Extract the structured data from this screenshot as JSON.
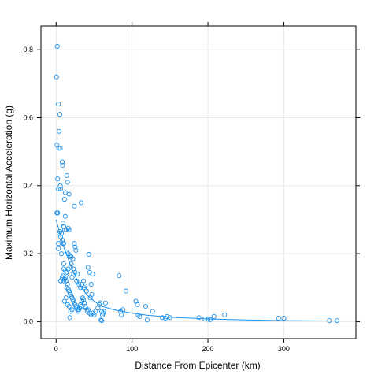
{
  "chart_data": {
    "type": "scatter",
    "title": "",
    "xlabel": "Distance From Epicenter (km)",
    "ylabel": "Maximum Horizontal Acceleration (g)",
    "xlim": [
      -20,
      395
    ],
    "ylim": [
      -0.05,
      0.87
    ],
    "xticks": [
      0,
      100,
      200,
      300
    ],
    "yticks": [
      0.0,
      0.2,
      0.4,
      0.6,
      0.8
    ],
    "ytick_labels": [
      "0.0",
      "0.2",
      "0.4",
      "0.6",
      "0.8"
    ],
    "grid": true,
    "colors": {
      "points": "#1E90E8",
      "smooth": "#1E90E8",
      "grid": "#e8e8e8",
      "frame": "#000000"
    },
    "points": [
      [
        0.5,
        0.72
      ],
      [
        1.5,
        0.81
      ],
      [
        3,
        0.64
      ],
      [
        5,
        0.61
      ],
      [
        4,
        0.56
      ],
      [
        1,
        0.52
      ],
      [
        3.5,
        0.51
      ],
      [
        5.5,
        0.51
      ],
      [
        8,
        0.47
      ],
      [
        8.5,
        0.46
      ],
      [
        2,
        0.42
      ],
      [
        5.5,
        0.4
      ],
      [
        3,
        0.39
      ],
      [
        6,
        0.39
      ],
      [
        14,
        0.43
      ],
      [
        12,
        0.38
      ],
      [
        17,
        0.375
      ],
      [
        15,
        0.41
      ],
      [
        11,
        0.36
      ],
      [
        24,
        0.34
      ],
      [
        33,
        0.35
      ],
      [
        1,
        0.32
      ],
      [
        2,
        0.32
      ],
      [
        12,
        0.31
      ],
      [
        9,
        0.29
      ],
      [
        10,
        0.28
      ],
      [
        11,
        0.27
      ],
      [
        13,
        0.27
      ],
      [
        16,
        0.275
      ],
      [
        17,
        0.27
      ],
      [
        4,
        0.26
      ],
      [
        5,
        0.265
      ],
      [
        7,
        0.26
      ],
      [
        6,
        0.25
      ],
      [
        8,
        0.24
      ],
      [
        9,
        0.23
      ],
      [
        10,
        0.23
      ],
      [
        3,
        0.23
      ],
      [
        24,
        0.23
      ],
      [
        25,
        0.22
      ],
      [
        26,
        0.21
      ],
      [
        14,
        0.205
      ],
      [
        16,
        0.2
      ],
      [
        18,
        0.195
      ],
      [
        20,
        0.19
      ],
      [
        22,
        0.185
      ],
      [
        20,
        0.17
      ],
      [
        3,
        0.215
      ],
      [
        7,
        0.2
      ],
      [
        10,
        0.17
      ],
      [
        10,
        0.155
      ],
      [
        12,
        0.15
      ],
      [
        14,
        0.145
      ],
      [
        16,
        0.155
      ],
      [
        18,
        0.14
      ],
      [
        19,
        0.16
      ],
      [
        21,
        0.13
      ],
      [
        23,
        0.155
      ],
      [
        25,
        0.145
      ],
      [
        27,
        0.12
      ],
      [
        28,
        0.14
      ],
      [
        30,
        0.11
      ],
      [
        32,
        0.1
      ],
      [
        34,
        0.11
      ],
      [
        36,
        0.12
      ],
      [
        37,
        0.1
      ],
      [
        38,
        0.105
      ],
      [
        40,
        0.09
      ],
      [
        42,
        0.16
      ],
      [
        43,
        0.198
      ],
      [
        44,
        0.145
      ],
      [
        46,
        0.11
      ],
      [
        48,
        0.14
      ],
      [
        45,
        0.07
      ],
      [
        47,
        0.08
      ],
      [
        6,
        0.12
      ],
      [
        8,
        0.13
      ],
      [
        9,
        0.135
      ],
      [
        10,
        0.12
      ],
      [
        11,
        0.125
      ],
      [
        12,
        0.13
      ],
      [
        13,
        0.12
      ],
      [
        14,
        0.1
      ],
      [
        15,
        0.11
      ],
      [
        16,
        0.095
      ],
      [
        17,
        0.09
      ],
      [
        18,
        0.085
      ],
      [
        19,
        0.08
      ],
      [
        20,
        0.075
      ],
      [
        21,
        0.07
      ],
      [
        22,
        0.065
      ],
      [
        23,
        0.06
      ],
      [
        24,
        0.055
      ],
      [
        25,
        0.05
      ],
      [
        26,
        0.045
      ],
      [
        27,
        0.04
      ],
      [
        28,
        0.035
      ],
      [
        29,
        0.03
      ],
      [
        30,
        0.035
      ],
      [
        31,
        0.04
      ],
      [
        32,
        0.05
      ],
      [
        33,
        0.045
      ],
      [
        34,
        0.06
      ],
      [
        35,
        0.07
      ],
      [
        36,
        0.065
      ],
      [
        37,
        0.055
      ],
      [
        38,
        0.045
      ],
      [
        39,
        0.04
      ],
      [
        41,
        0.03
      ],
      [
        42,
        0.035
      ],
      [
        44,
        0.025
      ],
      [
        46,
        0.02
      ],
      [
        48,
        0.025
      ],
      [
        50,
        0.02
      ],
      [
        52,
        0.03
      ],
      [
        11,
        0.06
      ],
      [
        13,
        0.07
      ],
      [
        15,
        0.05
      ],
      [
        17,
        0.045
      ],
      [
        19,
        0.03
      ],
      [
        21,
        0.035
      ],
      [
        18,
        0.012
      ],
      [
        55,
        0.04
      ],
      [
        57,
        0.05
      ],
      [
        58,
        0.055
      ],
      [
        60,
        0.03
      ],
      [
        61,
        0.02
      ],
      [
        62,
        0.025
      ],
      [
        59,
        0.005
      ],
      [
        60,
        0.003
      ],
      [
        63,
        0.03
      ],
      [
        65,
        0.055
      ],
      [
        83,
        0.135
      ],
      [
        85,
        0.03
      ],
      [
        86,
        0.02
      ],
      [
        88,
        0.035
      ],
      [
        92,
        0.09
      ],
      [
        105,
        0.06
      ],
      [
        107,
        0.05
      ],
      [
        108,
        0.02
      ],
      [
        110,
        0.015
      ],
      [
        118,
        0.045
      ],
      [
        120,
        0.005
      ],
      [
        127,
        0.03
      ],
      [
        140,
        0.012
      ],
      [
        144,
        0.01
      ],
      [
        146,
        0.015
      ],
      [
        150,
        0.012
      ],
      [
        188,
        0.012
      ],
      [
        196,
        0.008
      ],
      [
        200,
        0.007
      ],
      [
        203,
        0.006
      ],
      [
        208,
        0.015
      ],
      [
        222,
        0.02
      ],
      [
        293,
        0.01
      ],
      [
        300,
        0.01
      ],
      [
        360,
        0.003
      ],
      [
        370,
        0.003
      ]
    ],
    "smooth": [
      [
        0,
        0.3
      ],
      [
        5,
        0.26
      ],
      [
        10,
        0.22
      ],
      [
        15,
        0.19
      ],
      [
        20,
        0.16
      ],
      [
        25,
        0.135
      ],
      [
        30,
        0.11
      ],
      [
        40,
        0.08
      ],
      [
        50,
        0.06
      ],
      [
        60,
        0.045
      ],
      [
        80,
        0.033
      ],
      [
        100,
        0.025
      ],
      [
        120,
        0.019
      ],
      [
        150,
        0.013
      ],
      [
        200,
        0.008
      ],
      [
        250,
        0.005
      ],
      [
        300,
        0.003
      ],
      [
        370,
        0.002
      ]
    ]
  }
}
